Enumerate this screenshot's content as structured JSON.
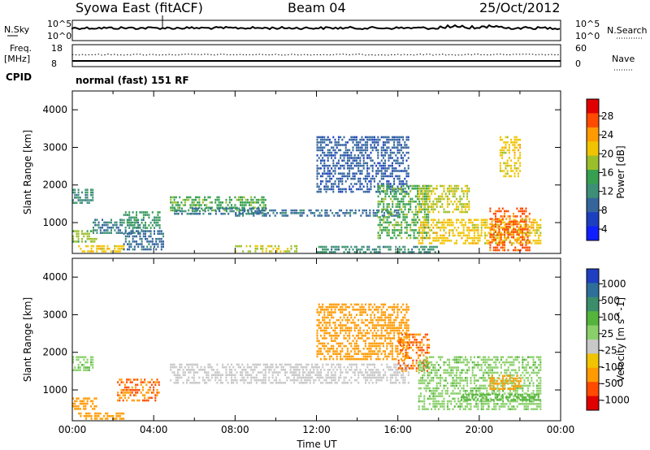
{
  "header": {
    "station": "Syowa East (fitACF)",
    "beam": "Beam 04",
    "date": "25/Oct/2012"
  },
  "strips": {
    "nsky_label": "N.Sky",
    "nsky_ticks": [
      "10^5",
      "10^0"
    ],
    "nsearch_label": "N.Search",
    "nsearch_ticks": [
      "10^5",
      "10^0"
    ],
    "freq_label": "Freq.",
    "freq_unit": "[MHz]",
    "freq_ticks": [
      "18",
      "8"
    ],
    "nave_label": "Nave",
    "nave_ticks": [
      "60",
      "0"
    ],
    "cpid_label": "CPID",
    "cpid_text": "normal (fast) 151 RF"
  },
  "chart_data": [
    {
      "type": "heatmap",
      "panel": "power",
      "ylabel": "Slant Range [km]",
      "xlabel": "",
      "ylim": [
        180,
        4500
      ],
      "yticks": [
        1000,
        2000,
        3000,
        4000
      ],
      "xlim_hours": [
        0,
        24
      ],
      "colorbar": {
        "label": "Power [dB]",
        "ticks": [
          "28",
          "24",
          "20",
          "16",
          "12",
          "8",
          "4"
        ],
        "colors": [
          "#e00000",
          "#ff4a00",
          "#ff9a00",
          "#f0c400",
          "#9bbf2a",
          "#36a050",
          "#3d8f78",
          "#34669c",
          "#1c3fc0",
          "#0f1fff"
        ]
      },
      "regions": [
        {
          "t0": 0.0,
          "t1": 1.0,
          "r0": 1550,
          "r1": 1900,
          "v": 10
        },
        {
          "t0": 0.0,
          "t1": 1.2,
          "r0": 500,
          "r1": 800,
          "v": 16
        },
        {
          "t0": 0.2,
          "t1": 2.5,
          "r0": 230,
          "r1": 400,
          "v": 20
        },
        {
          "t0": 1.0,
          "t1": 3.5,
          "r0": 700,
          "r1": 1100,
          "v": 9
        },
        {
          "t0": 2.5,
          "t1": 4.5,
          "r0": 300,
          "r1": 800,
          "v": 7
        },
        {
          "t0": 2.5,
          "t1": 4.3,
          "r0": 850,
          "r1": 1300,
          "v": 12
        },
        {
          "t0": 4.8,
          "t1": 9.5,
          "r0": 1350,
          "r1": 1700,
          "v": 14
        },
        {
          "t0": 5.0,
          "t1": 9.5,
          "r0": 1200,
          "r1": 1400,
          "v": 8
        },
        {
          "t0": 8.0,
          "t1": 16.0,
          "r0": 1150,
          "r1": 1350,
          "v": 7
        },
        {
          "t0": 8.0,
          "t1": 11.0,
          "r0": 200,
          "r1": 400,
          "v": 18
        },
        {
          "t0": 12.0,
          "t1": 16.5,
          "r0": 1800,
          "r1": 3300,
          "v": 6
        },
        {
          "t0": 15.0,
          "t1": 17.5,
          "r0": 600,
          "r1": 2000,
          "v": 14
        },
        {
          "t0": 17.0,
          "t1": 19.5,
          "r0": 1300,
          "r1": 2000,
          "v": 18
        },
        {
          "t0": 17.0,
          "t1": 23.0,
          "r0": 450,
          "r1": 1100,
          "v": 20
        },
        {
          "t0": 20.5,
          "t1": 22.5,
          "r0": 250,
          "r1": 1400,
          "v": 26
        },
        {
          "t0": 21.0,
          "t1": 22.0,
          "r0": 2200,
          "r1": 3300,
          "v": 20
        },
        {
          "t0": 12.0,
          "t1": 18.0,
          "r0": 240,
          "r1": 380,
          "v": 10
        }
      ]
    },
    {
      "type": "heatmap",
      "panel": "velocity",
      "ylabel": "Slant Range [km]",
      "xlabel": "Time UT",
      "ylim": [
        180,
        4500
      ],
      "yticks": [
        1000,
        2000,
        3000,
        4000
      ],
      "xlim_hours": [
        0,
        24
      ],
      "xticks": [
        "00:00",
        "04:00",
        "08:00",
        "12:00",
        "16:00",
        "20:00",
        "00:00"
      ],
      "colorbar": {
        "label": "Velocity [m s^-1]",
        "ticks": [
          "1000",
          "500",
          "100",
          "25",
          "-25",
          "-100",
          "-500",
          "-1000"
        ],
        "colors": [
          "#1d3fc0",
          "#2e6f9a",
          "#3a8e6a",
          "#55b43c",
          "#8ad06a",
          "#c8c8c8",
          "#f0c400",
          "#ff9a00",
          "#ff4a00",
          "#e00000"
        ]
      },
      "regions": [
        {
          "t0": 0.0,
          "t1": 1.0,
          "r0": 1550,
          "r1": 1900,
          "v": 60
        },
        {
          "t0": 0.0,
          "t1": 1.2,
          "r0": 500,
          "r1": 800,
          "v": -150
        },
        {
          "t0": 0.2,
          "t1": 2.5,
          "r0": 230,
          "r1": 400,
          "v": -150
        },
        {
          "t0": 2.2,
          "t1": 4.3,
          "r0": 700,
          "r1": 1300,
          "v": -300
        },
        {
          "t0": 4.8,
          "t1": 16.5,
          "r0": 1150,
          "r1": 1700,
          "v": 0
        },
        {
          "t0": 12.0,
          "t1": 16.5,
          "r0": 1800,
          "r1": 3300,
          "v": -200
        },
        {
          "t0": 16.0,
          "t1": 17.5,
          "r0": 1500,
          "r1": 2500,
          "v": -300
        },
        {
          "t0": 17.0,
          "t1": 23.0,
          "r0": 450,
          "r1": 1900,
          "v": 60
        },
        {
          "t0": 19.0,
          "t1": 23.0,
          "r0": 700,
          "r1": 900,
          "v": 120
        },
        {
          "t0": 20.5,
          "t1": 22.0,
          "r0": 1000,
          "r1": 1400,
          "v": -150
        }
      ]
    }
  ]
}
